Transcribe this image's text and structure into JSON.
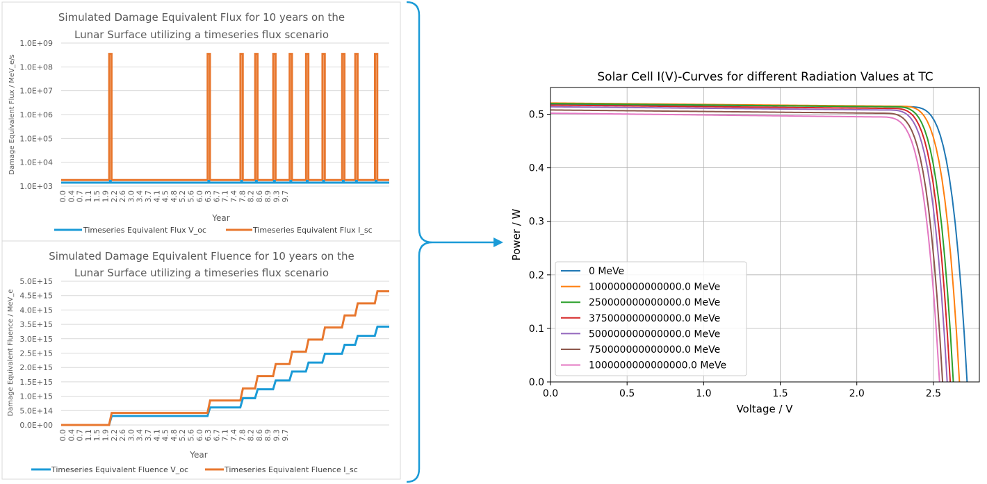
{
  "chart_data": [
    {
      "type": "line",
      "title_lines": [
        "Simulated Damage Equivalent Flux for 10 years on the",
        "Lunar Surface utilizing a timeseries flux scenario"
      ],
      "xlabel": "Year",
      "ylabel": "Damage Equivalent Flux / MeV_e/s",
      "y_scale": "log",
      "ylim": [
        1000,
        1000000000
      ],
      "y_ticks": [
        "1.0E+03",
        "1.0E+04",
        "1.0E+05",
        "1.0E+06",
        "1.0E+07",
        "1.0E+08",
        "1.0E+09"
      ],
      "x_ticks": [
        "0.0",
        "0.4",
        "0.7",
        "1.1",
        "1.5",
        "1.9",
        "2.2",
        "2.6",
        "3.0",
        "3.4",
        "3.7",
        "4.1",
        "4.5",
        "4.8",
        "5.2",
        "5.6",
        "6.0",
        "6.3",
        "6.7",
        "7.1",
        "7.4",
        "7.8",
        "8.2",
        "8.6",
        "8.9",
        "9.3",
        "9.7"
      ],
      "xlim": [
        0,
        10
      ],
      "legend_position": "bottom",
      "grid": true,
      "series": [
        {
          "name": "Timeseries Equivalent Flux V_oc",
          "color": "#1b9bd7",
          "baseline": 1400,
          "peak": 1400,
          "spike_years": [
            1.5,
            4.5,
            5.5,
            5.95,
            6.5,
            7.0,
            7.5,
            8.0,
            8.6,
            9.0,
            9.6
          ]
        },
        {
          "name": "Timeseries Equivalent Flux I_sc",
          "color": "#e8772e",
          "baseline": 1800,
          "peak": 350000000,
          "spike_years": [
            1.5,
            4.5,
            5.5,
            5.95,
            6.5,
            7.0,
            7.5,
            8.0,
            8.6,
            9.0,
            9.6
          ]
        }
      ]
    },
    {
      "type": "line",
      "title_lines": [
        "Simulated Damage Equivalent Fluence for 10 years on the",
        "Lunar Surface utilizing a timeseries flux scenario"
      ],
      "xlabel": "Year",
      "ylabel": "Damage Equivalent Fluence / MeV_e",
      "ylim": [
        0,
        5000000000000000.0
      ],
      "y_ticks": [
        "0.0E+00",
        "5.0E+14",
        "1.0E+15",
        "1.5E+15",
        "2.0E+15",
        "2.5E+15",
        "3.0E+15",
        "3.5E+15",
        "4.0E+15",
        "4.5E+15",
        "5.0E+15"
      ],
      "x_ticks": [
        "0.0",
        "0.4",
        "0.7",
        "1.1",
        "1.5",
        "1.9",
        "2.2",
        "2.6",
        "3.0",
        "3.4",
        "3.7",
        "4.1",
        "4.5",
        "4.8",
        "5.2",
        "5.6",
        "6.0",
        "6.3",
        "6.7",
        "7.1",
        "7.4",
        "7.8",
        "8.2",
        "8.6",
        "8.9",
        "9.3",
        "9.7"
      ],
      "xlim": [
        0,
        10
      ],
      "legend_position": "bottom",
      "grid": true,
      "series": [
        {
          "name": "Timeseries Equivalent Fluence V_oc",
          "color": "#1b9bd7",
          "steps": [
            [
              0,
              0
            ],
            [
              1.5,
              310000000000000.0
            ],
            [
              4.5,
              610000000000000.0
            ],
            [
              5.5,
              930000000000000.0
            ],
            [
              5.95,
              1240000000000000.0
            ],
            [
              6.5,
              1550000000000000.0
            ],
            [
              7.0,
              1860000000000000.0
            ],
            [
              7.5,
              2170000000000000.0
            ],
            [
              8.0,
              2480000000000000.0
            ],
            [
              8.6,
              2790000000000000.0
            ],
            [
              9.0,
              3100000000000000.0
            ],
            [
              9.6,
              3420000000000000.0
            ]
          ]
        },
        {
          "name": "Timeseries Equivalent Fluence I_sc",
          "color": "#e8772e",
          "steps": [
            [
              0,
              0
            ],
            [
              1.5,
              420000000000000.0
            ],
            [
              4.5,
              850000000000000.0
            ],
            [
              5.5,
              1270000000000000.0
            ],
            [
              5.95,
              1700000000000000.0
            ],
            [
              6.5,
              2120000000000000.0
            ],
            [
              7.0,
              2550000000000000.0
            ],
            [
              7.5,
              2970000000000000.0
            ],
            [
              8.0,
              3390000000000000.0
            ],
            [
              8.6,
              3810000000000000.0
            ],
            [
              9.0,
              4230000000000000.0
            ],
            [
              9.6,
              4650000000000000.0
            ]
          ]
        }
      ]
    },
    {
      "type": "line",
      "title": "Solar Cell I(V)-Curves for different Radiation Values at TC",
      "xlabel": "Voltage / V",
      "ylabel": "Power / W",
      "xlim": [
        0,
        2.8
      ],
      "ylim": [
        0,
        0.55
      ],
      "x_ticks": [
        0,
        0.5,
        1.0,
        1.5,
        2.0,
        2.5
      ],
      "x_tick_labels": [
        "0.0",
        "0.5",
        "1.0",
        "1.5",
        "2.0",
        "2.5"
      ],
      "y_ticks": [
        0,
        0.1,
        0.2,
        0.3,
        0.4,
        0.5
      ],
      "y_tick_labels": [
        "0.0",
        "0.1",
        "0.2",
        "0.3",
        "0.4",
        "0.5"
      ],
      "grid": true,
      "legend_position": "lower-left",
      "series": [
        {
          "name": "0 MeVe",
          "color": "#1f77b4",
          "p0": 0.519,
          "p_knee": 0.514,
          "v_knee": 2.3,
          "v_end": 2.72
        },
        {
          "name": "100000000000000.0 MeVe",
          "color": "#ff7f0e",
          "p0": 0.521,
          "p_knee": 0.515,
          "v_knee": 2.25,
          "v_end": 2.67
        },
        {
          "name": "250000000000000.0 MeVe",
          "color": "#2ca02c",
          "p0": 0.52,
          "p_knee": 0.514,
          "v_knee": 2.21,
          "v_end": 2.63
        },
        {
          "name": "375000000000000.0 MeVe",
          "color": "#d62728",
          "p0": 0.517,
          "p_knee": 0.511,
          "v_knee": 2.19,
          "v_end": 2.61
        },
        {
          "name": "500000000000000.0 MeVe",
          "color": "#9467bd",
          "p0": 0.514,
          "p_knee": 0.508,
          "v_knee": 2.17,
          "v_end": 2.59
        },
        {
          "name": "750000000000000.0 MeVe",
          "color": "#8c564b",
          "p0": 0.508,
          "p_knee": 0.502,
          "v_knee": 2.14,
          "v_end": 2.56
        },
        {
          "name": "1000000000000000.0 MeVe",
          "color": "#e377c2",
          "p0": 0.502,
          "p_knee": 0.495,
          "v_knee": 2.12,
          "v_end": 2.54
        }
      ]
    }
  ],
  "connector_color": "#1b9bd7"
}
